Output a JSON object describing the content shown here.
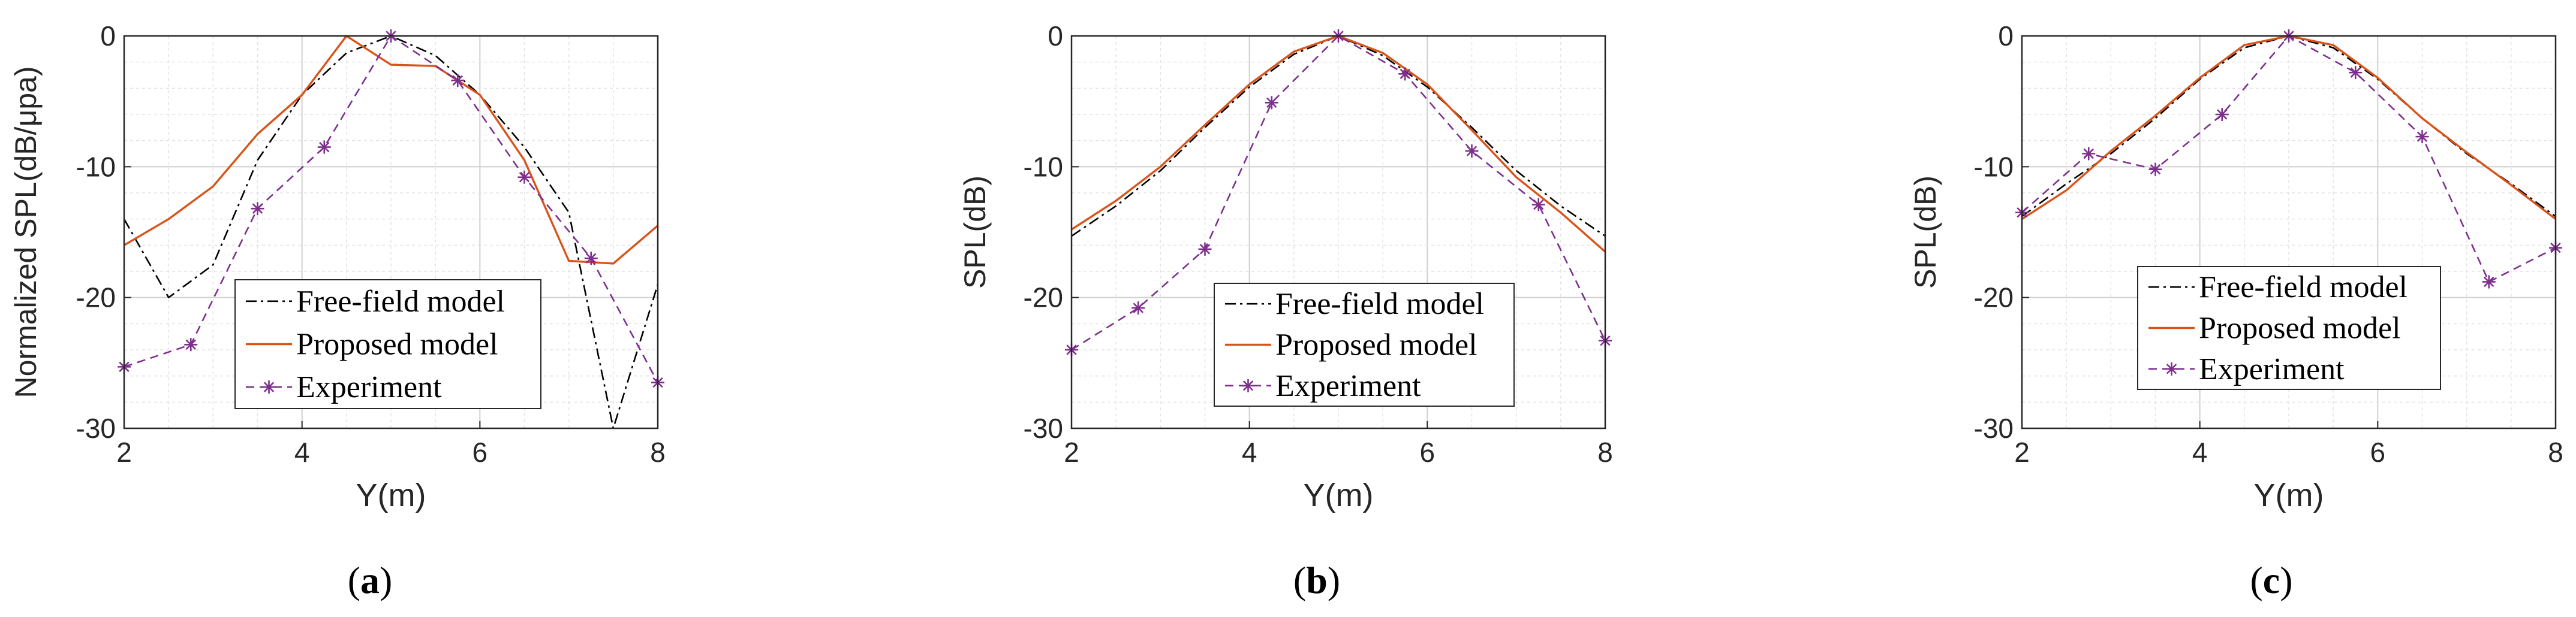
{
  "colors": {
    "free_field": "#000000",
    "proposed": "#d95319",
    "experiment": "#7e2f8e",
    "grid": "#d9d9d9",
    "axis": "#262626"
  },
  "legend": [
    "Free-field model",
    "Proposed model",
    "Experiment"
  ],
  "chart_data": [
    {
      "type": "line",
      "panel": "a",
      "caption": {
        "open": "(",
        "letter": "a",
        "close": ")"
      },
      "xlabel": "Y(m)",
      "ylabel": "Normalized SPL(dB/μpa)",
      "xlim": [
        2,
        8
      ],
      "ylim": [
        -30,
        0
      ],
      "xticks": [
        "2",
        "4",
        "6",
        "8"
      ],
      "yticks": [
        "0",
        "-10",
        "-20",
        "-30"
      ],
      "grid": "major and minor",
      "legend_position": "bottom-center",
      "series": [
        {
          "name": "Free-field model",
          "style": "dash-dot",
          "x": [
            2,
            2.5,
            3,
            3.5,
            4,
            4.5,
            5,
            5.5,
            6,
            6.5,
            7,
            7.5,
            8
          ],
          "y": [
            -14,
            -20,
            -17.5,
            -9.5,
            -4.5,
            -1.3,
            0,
            -1.5,
            -4.5,
            -8.5,
            -13.5,
            -30,
            -19
          ]
        },
        {
          "name": "Proposed model",
          "style": "solid",
          "x": [
            2,
            2.5,
            3,
            3.5,
            4,
            4.5,
            5,
            5.5,
            6,
            6.5,
            7,
            7.5,
            8
          ],
          "y": [
            -16,
            -14,
            -11.5,
            -7.5,
            -4.5,
            0,
            -2.2,
            -2.3,
            -4.5,
            -9.5,
            -17.2,
            -17.4,
            -14.5
          ]
        },
        {
          "name": "Experiment",
          "style": "dashed-asterisk",
          "x": [
            2,
            2.75,
            3.5,
            4.25,
            5,
            5.75,
            6.5,
            7.25,
            8
          ],
          "y": [
            -25.3,
            -23.6,
            -13.2,
            -8.5,
            0,
            -3.4,
            -10.8,
            -17,
            -26.5
          ]
        }
      ]
    },
    {
      "type": "line",
      "panel": "b",
      "caption": {
        "open": "(",
        "letter": "b",
        "close": ")"
      },
      "xlabel": "Y(m)",
      "ylabel": "SPL(dB)",
      "xlim": [
        2,
        8
      ],
      "ylim": [
        -30,
        0
      ],
      "xticks": [
        "2",
        "4",
        "6",
        "8"
      ],
      "yticks": [
        "0",
        "-10",
        "-20",
        "-30"
      ],
      "grid": "major and minor",
      "legend_position": "bottom-center",
      "series": [
        {
          "name": "Free-field model",
          "style": "dash-dot",
          "x": [
            2,
            2.5,
            3,
            3.5,
            4,
            4.5,
            5,
            5.5,
            6,
            6.5,
            7,
            7.5,
            8
          ],
          "y": [
            -15.3,
            -13,
            -10.3,
            -7,
            -3.9,
            -1.4,
            0,
            -1.5,
            -3.9,
            -7,
            -10.3,
            -13,
            -15.3
          ]
        },
        {
          "name": "Proposed model",
          "style": "solid",
          "x": [
            2,
            2.5,
            3,
            3.5,
            4,
            4.5,
            5,
            5.5,
            6,
            6.5,
            7,
            7.5,
            8
          ],
          "y": [
            -14.8,
            -12.6,
            -10,
            -6.8,
            -3.7,
            -1.2,
            0,
            -1.3,
            -3.7,
            -7.2,
            -10.8,
            -13.5,
            -16.5
          ]
        },
        {
          "name": "Experiment",
          "style": "dashed-asterisk",
          "x": [
            2,
            2.75,
            3.5,
            4.25,
            5,
            5.75,
            6.5,
            7.25,
            8
          ],
          "y": [
            -24,
            -20.8,
            -16.3,
            -5.1,
            0,
            -2.9,
            -8.8,
            -12.9,
            -23.3
          ]
        }
      ]
    },
    {
      "type": "line",
      "panel": "c",
      "caption": {
        "open": "(",
        "letter": "c",
        "close": ")"
      },
      "xlabel": "Y(m)",
      "ylabel": "SPL(dB)",
      "xlim": [
        2,
        8
      ],
      "ylim": [
        -30,
        0
      ],
      "xticks": [
        "2",
        "4",
        "6",
        "8"
      ],
      "yticks": [
        "0",
        "-10",
        "-20",
        "-30"
      ],
      "grid": "major and minor",
      "legend_position": "bottom-center",
      "series": [
        {
          "name": "Free-field model",
          "style": "dash-dot",
          "x": [
            2,
            2.5,
            3,
            3.5,
            4,
            4.5,
            5,
            5.5,
            6,
            6.5,
            7,
            7.5,
            8
          ],
          "y": [
            -13.8,
            -11.3,
            -9,
            -6.3,
            -3.3,
            -0.9,
            0,
            -0.9,
            -3.3,
            -6.3,
            -9,
            -11.3,
            -13.8
          ]
        },
        {
          "name": "Proposed model",
          "style": "solid",
          "x": [
            2,
            2.5,
            3,
            3.5,
            4,
            4.5,
            5,
            5.5,
            6,
            6.5,
            7,
            7.5,
            8
          ],
          "y": [
            -14,
            -11.8,
            -8.8,
            -6.1,
            -3.2,
            -0.7,
            0,
            -0.7,
            -3.2,
            -6.3,
            -8.9,
            -11.4,
            -14
          ]
        },
        {
          "name": "Experiment",
          "style": "dashed-asterisk",
          "x": [
            2,
            2.75,
            3.5,
            4.25,
            5,
            5.75,
            6.5,
            7.25,
            8
          ],
          "y": [
            -13.5,
            -9,
            -10.2,
            -6,
            0,
            -2.8,
            -7.7,
            -18.8,
            -16.2
          ]
        }
      ]
    }
  ]
}
